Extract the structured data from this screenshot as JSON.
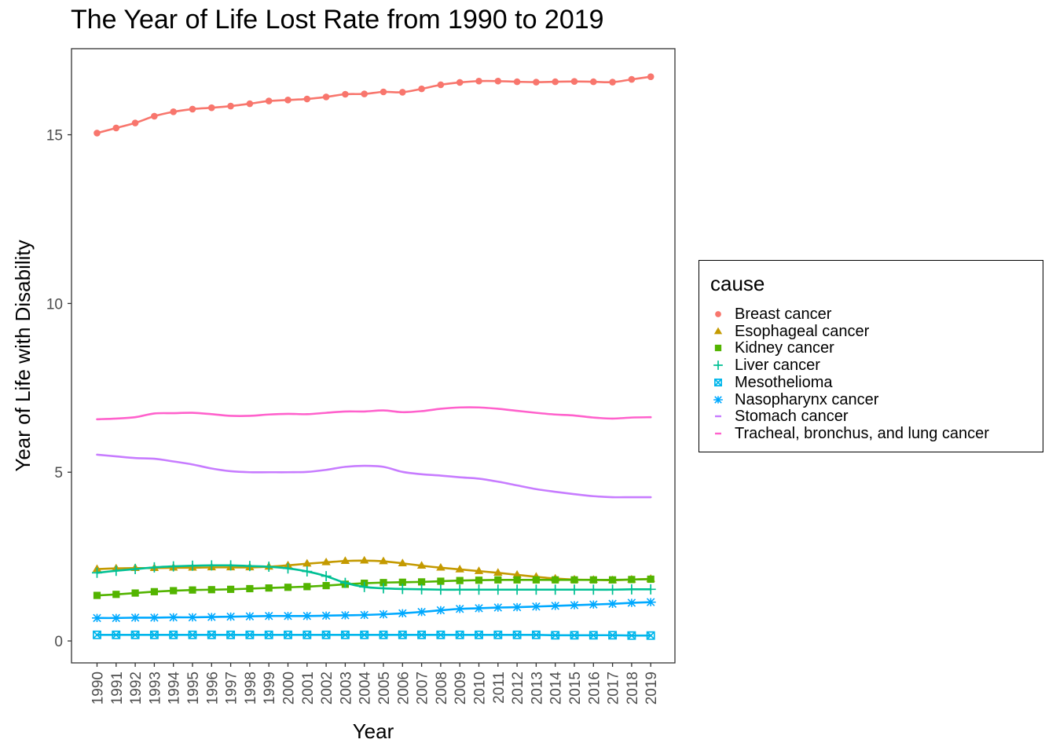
{
  "chart_data": {
    "type": "line",
    "title": "The Year of Life Lost Rate from 1990 to 2019",
    "xlabel": "Year",
    "ylabel": "Year of Life with Disability",
    "ylim": [
      -0.65,
      17.55
    ],
    "yticks": [
      "0",
      "5",
      "10",
      "15"
    ],
    "ytick_values": [
      0,
      5,
      10,
      15
    ],
    "grid": false,
    "legend_title": "cause",
    "legend_position": "right",
    "categories": [
      "1990",
      "1991",
      "1992",
      "1993",
      "1994",
      "1995",
      "1996",
      "1997",
      "1998",
      "1999",
      "2000",
      "2001",
      "2002",
      "2003",
      "2004",
      "2005",
      "2006",
      "2007",
      "2008",
      "2009",
      "2010",
      "2011",
      "2012",
      "2013",
      "2014",
      "2015",
      "2016",
      "2017",
      "2018",
      "2019"
    ],
    "series": [
      {
        "name": "Breast cancer",
        "color": "#F8766D",
        "marker": "circle",
        "line": true,
        "values": [
          15.05,
          15.2,
          15.35,
          15.55,
          15.68,
          15.76,
          15.8,
          15.85,
          15.92,
          16.0,
          16.03,
          16.06,
          16.12,
          16.2,
          16.21,
          16.27,
          16.26,
          16.36,
          16.48,
          16.55,
          16.59,
          16.59,
          16.57,
          16.56,
          16.57,
          16.58,
          16.57,
          16.56,
          16.64,
          16.72
        ]
      },
      {
        "name": "Esophageal cancer",
        "color": "#C49A00",
        "marker": "triangle",
        "line": true,
        "values": [
          2.13,
          2.15,
          2.16,
          2.16,
          2.17,
          2.17,
          2.18,
          2.18,
          2.18,
          2.2,
          2.24,
          2.29,
          2.33,
          2.37,
          2.38,
          2.36,
          2.3,
          2.23,
          2.17,
          2.12,
          2.07,
          2.02,
          1.96,
          1.9,
          1.85,
          1.82,
          1.81,
          1.8,
          1.82,
          1.84
        ]
      },
      {
        "name": "Kidney cancer",
        "color": "#53B400",
        "marker": "square",
        "line": true,
        "values": [
          1.35,
          1.38,
          1.42,
          1.46,
          1.49,
          1.51,
          1.52,
          1.53,
          1.55,
          1.57,
          1.59,
          1.61,
          1.64,
          1.68,
          1.71,
          1.73,
          1.74,
          1.75,
          1.77,
          1.79,
          1.8,
          1.81,
          1.81,
          1.81,
          1.81,
          1.81,
          1.81,
          1.81,
          1.82,
          1.83
        ]
      },
      {
        "name": "Liver cancer",
        "color": "#00C094",
        "marker": "plus",
        "line": true,
        "values": [
          2.02,
          2.08,
          2.13,
          2.18,
          2.21,
          2.23,
          2.24,
          2.24,
          2.22,
          2.2,
          2.15,
          2.06,
          1.92,
          1.72,
          1.6,
          1.56,
          1.54,
          1.53,
          1.52,
          1.52,
          1.52,
          1.52,
          1.52,
          1.52,
          1.52,
          1.52,
          1.52,
          1.52,
          1.53,
          1.53
        ]
      },
      {
        "name": "Mesothelioma",
        "color": "#00B6EB",
        "marker": "square-x",
        "line": true,
        "values": [
          0.18,
          0.18,
          0.18,
          0.18,
          0.18,
          0.18,
          0.18,
          0.18,
          0.18,
          0.18,
          0.18,
          0.18,
          0.18,
          0.18,
          0.18,
          0.18,
          0.18,
          0.18,
          0.18,
          0.18,
          0.18,
          0.18,
          0.18,
          0.18,
          0.17,
          0.17,
          0.17,
          0.17,
          0.16,
          0.16
        ]
      },
      {
        "name": "Nasopharynx cancer",
        "color": "#00A9FF",
        "marker": "asterisk",
        "line": true,
        "values": [
          0.68,
          0.68,
          0.69,
          0.69,
          0.7,
          0.7,
          0.71,
          0.72,
          0.73,
          0.74,
          0.74,
          0.74,
          0.75,
          0.76,
          0.77,
          0.79,
          0.82,
          0.86,
          0.91,
          0.95,
          0.97,
          0.99,
          1.0,
          1.02,
          1.04,
          1.06,
          1.08,
          1.1,
          1.13,
          1.15
        ]
      },
      {
        "name": "Stomach cancer",
        "color": "#C77CFF",
        "marker": "none",
        "line": true,
        "values": [
          5.52,
          5.47,
          5.42,
          5.4,
          5.32,
          5.23,
          5.11,
          5.03,
          5.0,
          5.0,
          5.0,
          5.01,
          5.07,
          5.16,
          5.19,
          5.16,
          5.01,
          4.94,
          4.9,
          4.85,
          4.81,
          4.72,
          4.61,
          4.5,
          4.42,
          4.35,
          4.29,
          4.26,
          4.26,
          4.26
        ]
      },
      {
        "name": "Tracheal, bronchus, and lung cancer",
        "color": "#FF61CC",
        "marker": "none",
        "line": true,
        "values": [
          6.57,
          6.59,
          6.63,
          6.74,
          6.75,
          6.76,
          6.72,
          6.67,
          6.67,
          6.71,
          6.73,
          6.72,
          6.76,
          6.8,
          6.8,
          6.83,
          6.78,
          6.81,
          6.88,
          6.92,
          6.92,
          6.88,
          6.82,
          6.76,
          6.71,
          6.68,
          6.62,
          6.59,
          6.62,
          6.63
        ]
      }
    ]
  }
}
